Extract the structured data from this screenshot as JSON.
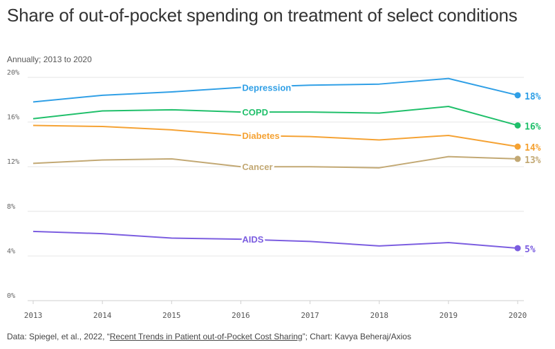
{
  "title": "Share of out-of-pocket spending on treatment of select conditions",
  "subtitle": "Annually; 2013 to 2020",
  "footer": {
    "prefix": "Data: Spiegel, et al., 2022, “",
    "link_text": "Recent Trends in Patient out-of-Pocket Cost Sharing",
    "suffix": "”; Chart: Kavya Beheraj/Axios"
  },
  "chart_data": {
    "type": "line",
    "title": "Share of out-of-pocket spending on treatment of select conditions",
    "subtitle": "Annually; 2013 to 2020",
    "x": [
      2013,
      2014,
      2015,
      2016,
      2017,
      2018,
      2019,
      2020
    ],
    "ylim": [
      0,
      20
    ],
    "y_ticks": [
      0,
      4,
      8,
      12,
      16,
      20
    ],
    "y_tick_labels": [
      "0%",
      "4%",
      "8%",
      "12%",
      "16%",
      "20%"
    ],
    "x_tick_labels": [
      "2013",
      "2014",
      "2015",
      "2016",
      "2017",
      "2018",
      "2019",
      "2020"
    ],
    "grid": true,
    "legend": "inline labels",
    "series": [
      {
        "name": "Depression",
        "color": "#2f9fe6",
        "end_label": "18%",
        "values": [
          17.8,
          18.4,
          18.7,
          19.1,
          19.3,
          19.4,
          19.9,
          18.4
        ]
      },
      {
        "name": "COPD",
        "color": "#1fbf6a",
        "end_label": "16%",
        "values": [
          16.3,
          17.0,
          17.1,
          16.9,
          16.9,
          16.8,
          17.4,
          15.7
        ]
      },
      {
        "name": "Diabetes",
        "color": "#f5a233",
        "end_label": "14%",
        "values": [
          15.7,
          15.6,
          15.3,
          14.8,
          14.7,
          14.4,
          14.8,
          13.8
        ]
      },
      {
        "name": "Cancer",
        "color": "#c2a873",
        "end_label": "13%",
        "values": [
          12.3,
          12.6,
          12.7,
          12.0,
          12.0,
          11.9,
          12.9,
          12.7
        ]
      },
      {
        "name": "AIDS",
        "color": "#7b5de0",
        "end_label": "5%",
        "values": [
          6.2,
          6.0,
          5.6,
          5.5,
          5.3,
          4.9,
          5.2,
          4.7
        ]
      }
    ]
  }
}
